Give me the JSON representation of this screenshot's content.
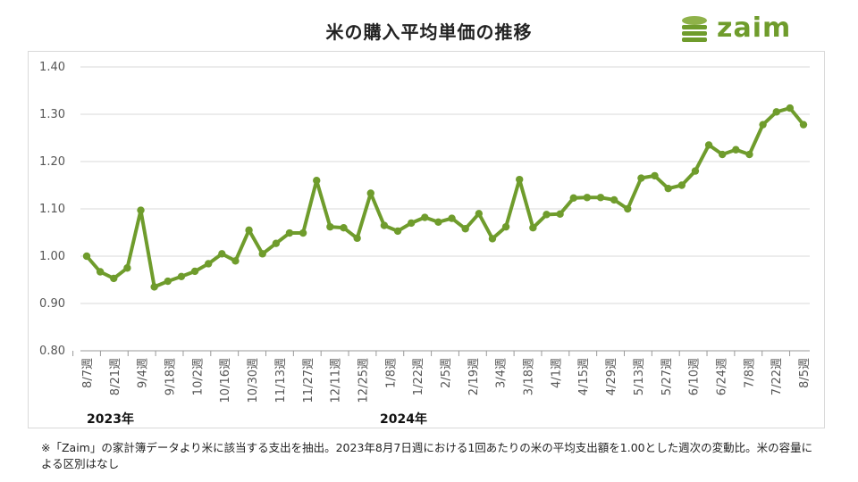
{
  "title": "米の購入平均単価の推移",
  "logo_text": "zaim",
  "years": [
    "2023年",
    "2024年"
  ],
  "footnote": "※「Zaim」の家計簿データより米に該当する支出を抽出。2023年8月7日週における1回あたりの米の平均支出額を1.00とした週次の変動比。米の容量による区別はなし",
  "colors": {
    "line": "#6f9c2c",
    "grid": "#d9d9d9",
    "logo": "#6f9c2c"
  },
  "chart_data": {
    "type": "line",
    "title": "米の購入平均単価の推移",
    "ylim": [
      0.8,
      1.4
    ],
    "yticks": [
      "0.80",
      "0.90",
      "1.00",
      "1.10",
      "1.20",
      "1.30",
      "1.40"
    ],
    "grid": "horizontal",
    "xtick_labels": [
      "8/7週",
      "8/21週",
      "9/4週",
      "9/18週",
      "10/2週",
      "10/16週",
      "10/30週",
      "11/13週",
      "11/27週",
      "12/11週",
      "12/25週",
      "1/8週",
      "1/22週",
      "2/5週",
      "2/19週",
      "3/4週",
      "3/18週",
      "4/1週",
      "4/15週",
      "4/29週",
      "5/13週",
      "5/27週",
      "6/10週",
      "6/24週",
      "7/8週",
      "7/22週",
      "8/5週"
    ],
    "values": [
      1.0,
      0.967,
      0.953,
      0.975,
      1.097,
      0.935,
      0.947,
      0.957,
      0.968,
      0.984,
      1.005,
      0.99,
      1.055,
      1.005,
      1.027,
      1.049,
      1.049,
      1.16,
      1.062,
      1.06,
      1.038,
      1.133,
      1.065,
      1.053,
      1.07,
      1.082,
      1.072,
      1.08,
      1.058,
      1.09,
      1.037,
      1.062,
      1.162,
      1.06,
      1.088,
      1.089,
      1.123,
      1.124,
      1.124,
      1.119,
      1.1,
      1.165,
      1.17,
      1.143,
      1.15,
      1.18,
      1.235,
      1.215,
      1.225,
      1.215,
      1.278,
      1.305,
      1.313,
      1.278
    ]
  }
}
